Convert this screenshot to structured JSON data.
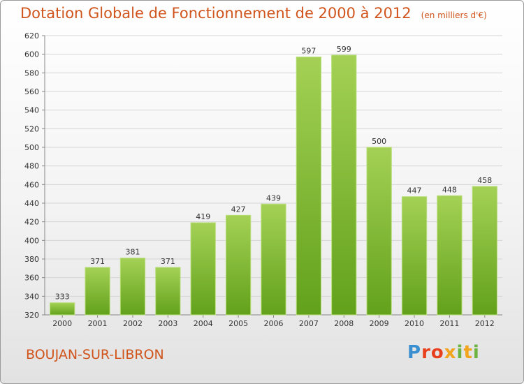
{
  "header": {
    "title": "Dotation Globale de Fonctionnement de 2000 à 2012",
    "unit": "(en milliers d'€)"
  },
  "footer": {
    "commune": "BOUJAN-SUR-LIBRON",
    "logo": "Proxiti"
  },
  "colors": {
    "title": "#d0541c",
    "bar_light": "#a4d155",
    "bar_dark": "#62a11b",
    "grid": "#d5d5d5"
  },
  "chart_data": {
    "type": "bar",
    "title": "Dotation Globale de Fonctionnement de 2000 à 2012",
    "subtitle": "(en milliers d'€)",
    "categories": [
      "2000",
      "2001",
      "2002",
      "2003",
      "2004",
      "2005",
      "2006",
      "2007",
      "2008",
      "2009",
      "2010",
      "2011",
      "2012"
    ],
    "values": [
      333,
      371,
      381,
      371,
      419,
      427,
      439,
      597,
      599,
      500,
      447,
      448,
      458
    ],
    "ylim": [
      320,
      620
    ],
    "yticks": [
      320,
      340,
      360,
      380,
      400,
      420,
      440,
      460,
      480,
      500,
      520,
      540,
      560,
      580,
      600,
      620
    ],
    "grid": true
  }
}
